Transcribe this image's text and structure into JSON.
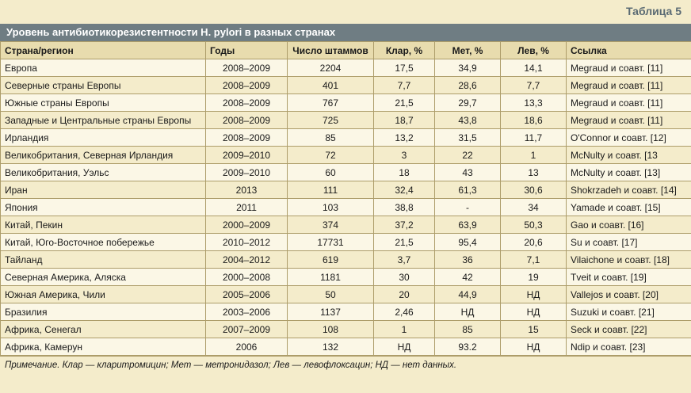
{
  "table_label": "Таблица 5",
  "title": "Уровень антибиотикорезистентности H. pylori в разных странах",
  "headers": [
    "Страна/регион",
    "Годы",
    "Число штаммов",
    "Клар, %",
    "Мет, %",
    "Лев, %",
    "Ссылка"
  ],
  "rows": [
    [
      "Европа",
      "2008–2009",
      "2204",
      "17,5",
      "34,9",
      "14,1",
      "Megraud и соавт. [11]"
    ],
    [
      "Северные страны Европы",
      "2008–2009",
      "401",
      "7,7",
      "28,6",
      "7,7",
      "Megraud и соавт. [11]"
    ],
    [
      "Южные страны Европы",
      "2008–2009",
      "767",
      "21,5",
      "29,7",
      "13,3",
      "Megraud и соавт. [11]"
    ],
    [
      "Западные и Центральные страны Европы",
      "2008–2009",
      "725",
      "18,7",
      "43,8",
      "18,6",
      "Megraud и соавт. [11]"
    ],
    [
      "Ирландия",
      "2008–2009",
      "85",
      "13,2",
      "31,5",
      "11,7",
      "O'Connor и соавт. [12]"
    ],
    [
      "Великобритания, Северная Ирландия",
      "2009–2010",
      "72",
      "3",
      "22",
      "1",
      "McNulty и соавт. [13"
    ],
    [
      "Великобритания, Уэльс",
      "2009–2010",
      "60",
      "18",
      "43",
      "13",
      "McNulty и соавт. [13]"
    ],
    [
      "Иран",
      "2013",
      "111",
      "32,4",
      "61,3",
      "30,6",
      "Shokrzadeh и соавт. [14]"
    ],
    [
      "Япония",
      "2011",
      "103",
      "38,8",
      "-",
      "34",
      "Yamade и соавт. [15]"
    ],
    [
      "Китай, Пекин",
      "2000–2009",
      "374",
      "37,2",
      "63,9",
      "50,3",
      "Gao и соавт. [16]"
    ],
    [
      "Китай, Юго-Восточное побережье",
      "2010–2012",
      "17731",
      "21,5",
      "95,4",
      "20,6",
      "Su и соавт. [17]"
    ],
    [
      "Тайланд",
      "2004–2012",
      "619",
      "3,7",
      "36",
      "7,1",
      "Vilaichone и соавт. [18]"
    ],
    [
      "Северная Америка, Аляска",
      "2000–2008",
      "1181",
      "30",
      "42",
      "19",
      "Tveit и соавт. [19]"
    ],
    [
      "Южная Америка, Чили",
      "2005–2006",
      "50",
      "20",
      "44,9",
      "НД",
      "Vallejos и соавт. [20]"
    ],
    [
      "Бразилия",
      "2003–2006",
      "1137",
      "2,46",
      "НД",
      "НД",
      "Suzuki и соавт. [21]"
    ],
    [
      "Африка, Сенегал",
      "2007–2009",
      "108",
      "1",
      "85",
      "15",
      "Seck и соавт. [22]"
    ],
    [
      "Африка, Камерун",
      "2006",
      "132",
      "НД",
      "93.2",
      "НД",
      "Ndip и соавт. [23]"
    ]
  ],
  "note": "Примечание. Клар — кларитромицин; Мет — метронидазол; Лев — левофлоксацин; НД — нет данных."
}
